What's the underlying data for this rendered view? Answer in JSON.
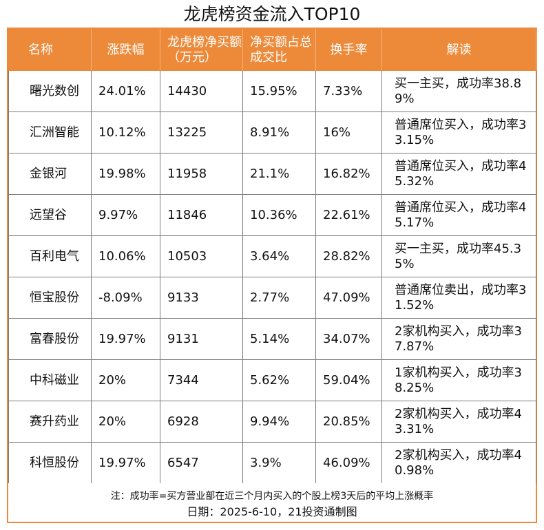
{
  "title": "龙虎榜资金流入TOP10",
  "header": [
    "名称",
    "涨跌幅",
    "龙虎榜净买额（万元）",
    "净买额占总成交比",
    "换手率",
    "解读"
  ],
  "rows": [
    [
      "曙光数创",
      "24.01%",
      "14430",
      "15.95%",
      "7.33%",
      "买一主买，成功率38.89%"
    ],
    [
      "汇洲智能",
      "10.12%",
      "13225",
      "8.91%",
      "16%",
      "普通席位买入，成功率33.15%"
    ],
    [
      "金银河",
      "19.98%",
      "11958",
      "21.1%",
      "16.82%",
      "普通席位买入，成功率45.32%"
    ],
    [
      "远望谷",
      "9.97%",
      "11846",
      "10.36%",
      "22.61%",
      "普通席位买入，成功率45.17%"
    ],
    [
      "百利电气",
      "10.06%",
      "10503",
      "3.64%",
      "28.82%",
      "买一主买，成功率45.35%"
    ],
    [
      "恒宝股份",
      "-8.09%",
      "9133",
      "2.77%",
      "47.09%",
      "普通席位卖出，成功率31.52%"
    ],
    [
      "富春股份",
      "19.97%",
      "9131",
      "5.14%",
      "34.07%",
      "2家机构买入，成功率37.87%"
    ],
    [
      "中科磁业",
      "20%",
      "7344",
      "5.62%",
      "59.04%",
      "1家机构买入，成功率38.25%"
    ],
    [
      "赛升药业",
      "20%",
      "6928",
      "9.94%",
      "20.85%",
      "2家机构买入，成功率43.31%"
    ],
    [
      "科恒股份",
      "19.97%",
      "6547",
      "3.9%",
      "46.09%",
      "2家机构买入，成功率40.98%"
    ]
  ],
  "footnote": "注：成功率=买方营业部在近三个月内买入的个股上榜3天后的平均上涨概率",
  "dateline": "日期：2025-6-10，21投资通制图",
  "colors": {
    "header_bg": "#ed8a3a",
    "border": "#7a7a7a"
  }
}
